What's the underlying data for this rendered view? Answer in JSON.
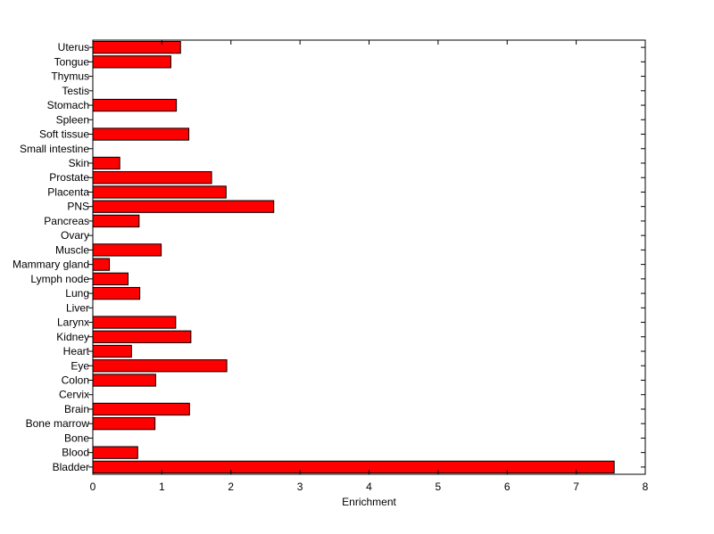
{
  "chart_data": {
    "type": "bar",
    "orientation": "horizontal",
    "title": "",
    "xlabel": "Enrichment",
    "ylabel": "",
    "xlim": [
      0,
      8
    ],
    "x_ticks": [
      "0",
      "1",
      "2",
      "3",
      "4",
      "5",
      "6",
      "7",
      "8"
    ],
    "grid": false,
    "bar_color": "#ff0000",
    "bar_edge_color": "#000000",
    "categories": [
      "Bladder",
      "Blood",
      "Bone",
      "Bone marrow",
      "Brain",
      "Cervix",
      "Colon",
      "Eye",
      "Heart",
      "Kidney",
      "Larynx",
      "Liver",
      "Lung",
      "Lymph node",
      "Mammary gland",
      "Muscle",
      "Ovary",
      "Pancreas",
      "PNS",
      "Placenta",
      "Prostate",
      "Skin",
      "Small intestine",
      "Soft tissue",
      "Spleen",
      "Stomach",
      "Testis",
      "Thymus",
      "Tongue",
      "Uterus"
    ],
    "values": [
      7.55,
      0.65,
      0,
      0.9,
      1.4,
      0,
      0.91,
      1.94,
      0.56,
      1.42,
      1.2,
      0,
      0.68,
      0.51,
      0.24,
      0.99,
      0,
      0.67,
      2.62,
      1.93,
      1.72,
      0.39,
      0,
      1.39,
      0,
      1.21,
      0,
      0,
      1.13,
      1.27
    ]
  }
}
